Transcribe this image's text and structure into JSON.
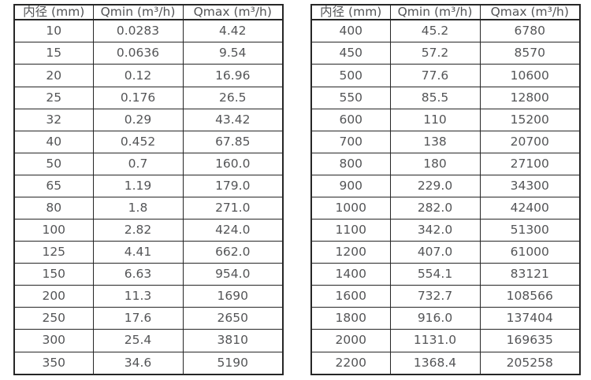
{
  "page": {
    "background_color": "#ffffff",
    "text_color": "#545557",
    "border_color": "#262626"
  },
  "tables": [
    {
      "name": "flow-range-table-small-diameters",
      "headers": [
        "内径 (mm)",
        "Qmin (m³/h)",
        "Qmax (m³/h)"
      ],
      "rows": [
        [
          "10",
          "0.0283",
          "4.42"
        ],
        [
          "15",
          "0.0636",
          "9.54"
        ],
        [
          "20",
          "0.12",
          "16.96"
        ],
        [
          "25",
          "0.176",
          "26.5"
        ],
        [
          "32",
          "0.29",
          "43.42"
        ],
        [
          "40",
          "0.452",
          "67.85"
        ],
        [
          "50",
          "0.7",
          "160.0"
        ],
        [
          "65",
          "1.19",
          "179.0"
        ],
        [
          "80",
          "1.8",
          "271.0"
        ],
        [
          "100",
          "2.82",
          "424.0"
        ],
        [
          "125",
          "4.41",
          "662.0"
        ],
        [
          "150",
          "6.63",
          "954.0"
        ],
        [
          "200",
          "11.3",
          "1690"
        ],
        [
          "250",
          "17.6",
          "2650"
        ],
        [
          "300",
          "25.4",
          "3810"
        ],
        [
          "350",
          "34.6",
          "5190"
        ]
      ]
    },
    {
      "name": "flow-range-table-large-diameters",
      "headers": [
        "内径 (mm)",
        "Qmin (m³/h)",
        "Qmax (m³/h)"
      ],
      "rows": [
        [
          "400",
          "45.2",
          "6780"
        ],
        [
          "450",
          "57.2",
          "8570"
        ],
        [
          "500",
          "77.6",
          "10600"
        ],
        [
          "550",
          "85.5",
          "12800"
        ],
        [
          "600",
          "110",
          "15200"
        ],
        [
          "700",
          "138",
          "20700"
        ],
        [
          "800",
          "180",
          "27100"
        ],
        [
          "900",
          "229.0",
          "34300"
        ],
        [
          "1000",
          "282.0",
          "42400"
        ],
        [
          "1100",
          "342.0",
          "51300"
        ],
        [
          "1200",
          "407.0",
          "61000"
        ],
        [
          "1400",
          "554.1",
          "83121"
        ],
        [
          "1600",
          "732.7",
          "108566"
        ],
        [
          "1800",
          "916.0",
          "137404"
        ],
        [
          "2000",
          "1131.0",
          "169635"
        ],
        [
          "2200",
          "1368.4",
          "205258"
        ]
      ]
    }
  ]
}
